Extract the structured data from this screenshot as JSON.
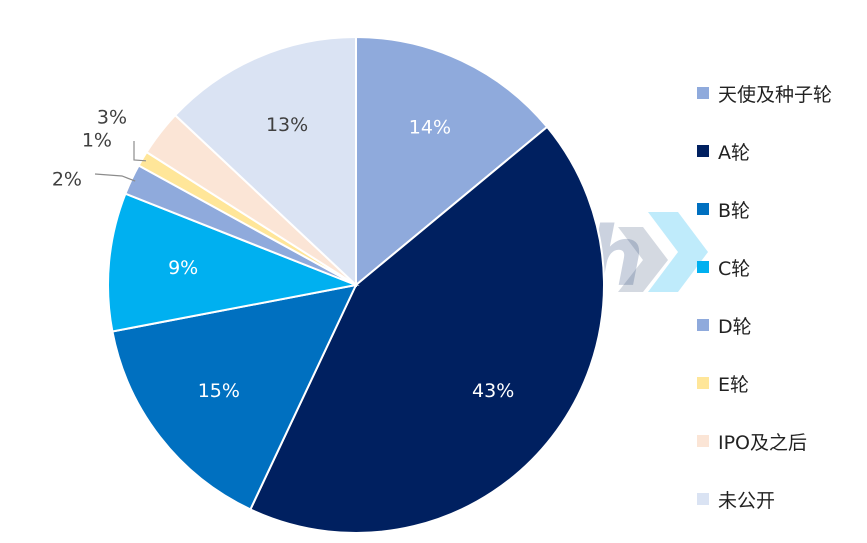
{
  "watermark": {
    "text_en": "Sinohealth",
    "text_cn": "中康科技"
  },
  "chart_data": {
    "type": "pie",
    "title": "",
    "start_angle_deg": 0,
    "direction": "clockwise",
    "categories": [
      "天使及种子轮",
      "A轮",
      "B轮",
      "C轮",
      "D轮",
      "E轮",
      "IPO及之后",
      "未公开"
    ],
    "values": [
      14,
      43,
      15,
      9,
      2,
      1,
      3,
      13
    ],
    "labels": [
      "14%",
      "43%",
      "15%",
      "9%",
      "2%",
      "1%",
      "3%",
      "13%"
    ],
    "colors": [
      "#8FAADC",
      "#002060",
      "#0070C0",
      "#00B0F0",
      "#8FAADC",
      "#FFE699",
      "#FBE5D6",
      "#DAE3F3"
    ],
    "label_colors": [
      "#ffffff",
      "#ffffff",
      "#ffffff",
      "#ffffff",
      "#404040",
      "#404040",
      "#404040",
      "#404040"
    ],
    "legend_position": "right"
  }
}
